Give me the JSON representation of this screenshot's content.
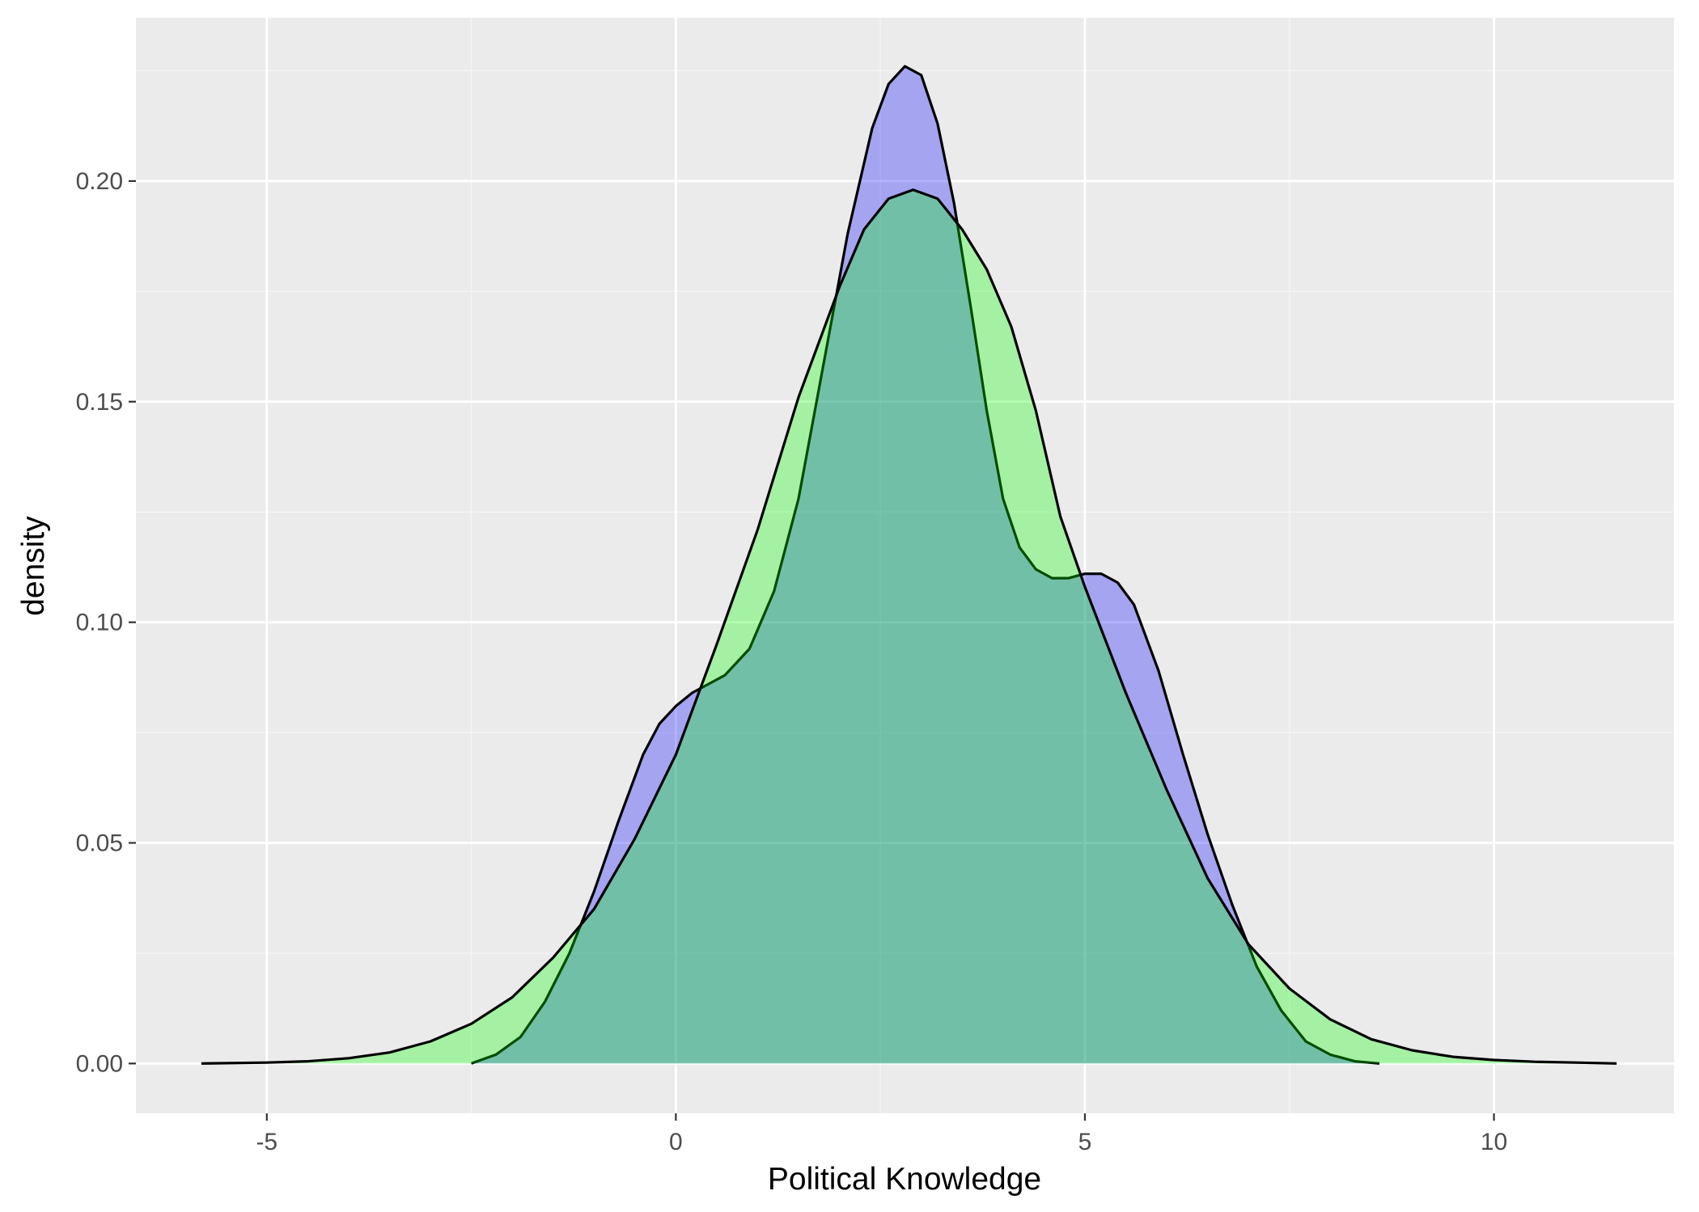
{
  "chart_data": {
    "type": "area",
    "title": "",
    "xlabel": "Political Knowledge",
    "ylabel": "density",
    "xlim": [
      -6.6,
      12.2
    ],
    "ylim": [
      -0.0113,
      0.237
    ],
    "x_ticks": [
      -5,
      0,
      5,
      10
    ],
    "x_tick_labels": [
      "-5",
      "0",
      "5",
      "10"
    ],
    "y_ticks": [
      0.0,
      0.05,
      0.1,
      0.15,
      0.2
    ],
    "y_tick_labels": [
      "0.00",
      "0.05",
      "0.10",
      "0.15",
      "0.20"
    ],
    "grid": true,
    "legend": "none",
    "colors": {
      "panel_bg": "#ebebeb",
      "grid_major": "#ffffff",
      "grid_minor": "#f5f5f5",
      "outline": "#000000"
    },
    "series": [
      {
        "fill": "#0000ff",
        "fill_opacity": 0.3,
        "x": [
          -2.5,
          -2.2,
          -1.9,
          -1.6,
          -1.3,
          -1.0,
          -0.7,
          -0.4,
          -0.2,
          0.0,
          0.2,
          0.4,
          0.6,
          0.9,
          1.2,
          1.5,
          1.8,
          2.1,
          2.4,
          2.6,
          2.8,
          3.0,
          3.2,
          3.4,
          3.6,
          3.8,
          4.0,
          4.2,
          4.4,
          4.6,
          4.8,
          5.0,
          5.2,
          5.4,
          5.6,
          5.9,
          6.2,
          6.5,
          6.8,
          7.1,
          7.4,
          7.7,
          8.0,
          8.3,
          8.6
        ],
        "y": [
          0.0,
          0.002,
          0.006,
          0.014,
          0.025,
          0.039,
          0.055,
          0.07,
          0.077,
          0.081,
          0.084,
          0.086,
          0.088,
          0.094,
          0.107,
          0.128,
          0.158,
          0.188,
          0.212,
          0.222,
          0.226,
          0.224,
          0.213,
          0.195,
          0.172,
          0.148,
          0.128,
          0.117,
          0.112,
          0.11,
          0.11,
          0.111,
          0.111,
          0.109,
          0.104,
          0.089,
          0.07,
          0.052,
          0.036,
          0.022,
          0.012,
          0.005,
          0.002,
          0.0005,
          0.0
        ]
      },
      {
        "fill": "#00ff00",
        "fill_opacity": 0.3,
        "x": [
          -5.8,
          -5.0,
          -4.5,
          -4.0,
          -3.5,
          -3.0,
          -2.5,
          -2.0,
          -1.5,
          -1.0,
          -0.5,
          0.0,
          0.5,
          1.0,
          1.5,
          2.0,
          2.3,
          2.6,
          2.9,
          3.2,
          3.5,
          3.8,
          4.1,
          4.4,
          4.7,
          5.0,
          5.5,
          6.0,
          6.5,
          7.0,
          7.5,
          8.0,
          8.5,
          9.0,
          9.5,
          10.0,
          10.5,
          11.0,
          11.5
        ],
        "y": [
          0.0,
          0.0002,
          0.0005,
          0.0012,
          0.0025,
          0.005,
          0.009,
          0.015,
          0.024,
          0.035,
          0.051,
          0.07,
          0.095,
          0.121,
          0.151,
          0.176,
          0.189,
          0.196,
          0.198,
          0.196,
          0.189,
          0.18,
          0.167,
          0.148,
          0.124,
          0.108,
          0.084,
          0.062,
          0.042,
          0.027,
          0.017,
          0.01,
          0.0055,
          0.003,
          0.0015,
          0.0008,
          0.0004,
          0.0002,
          0.0
        ]
      }
    ]
  }
}
